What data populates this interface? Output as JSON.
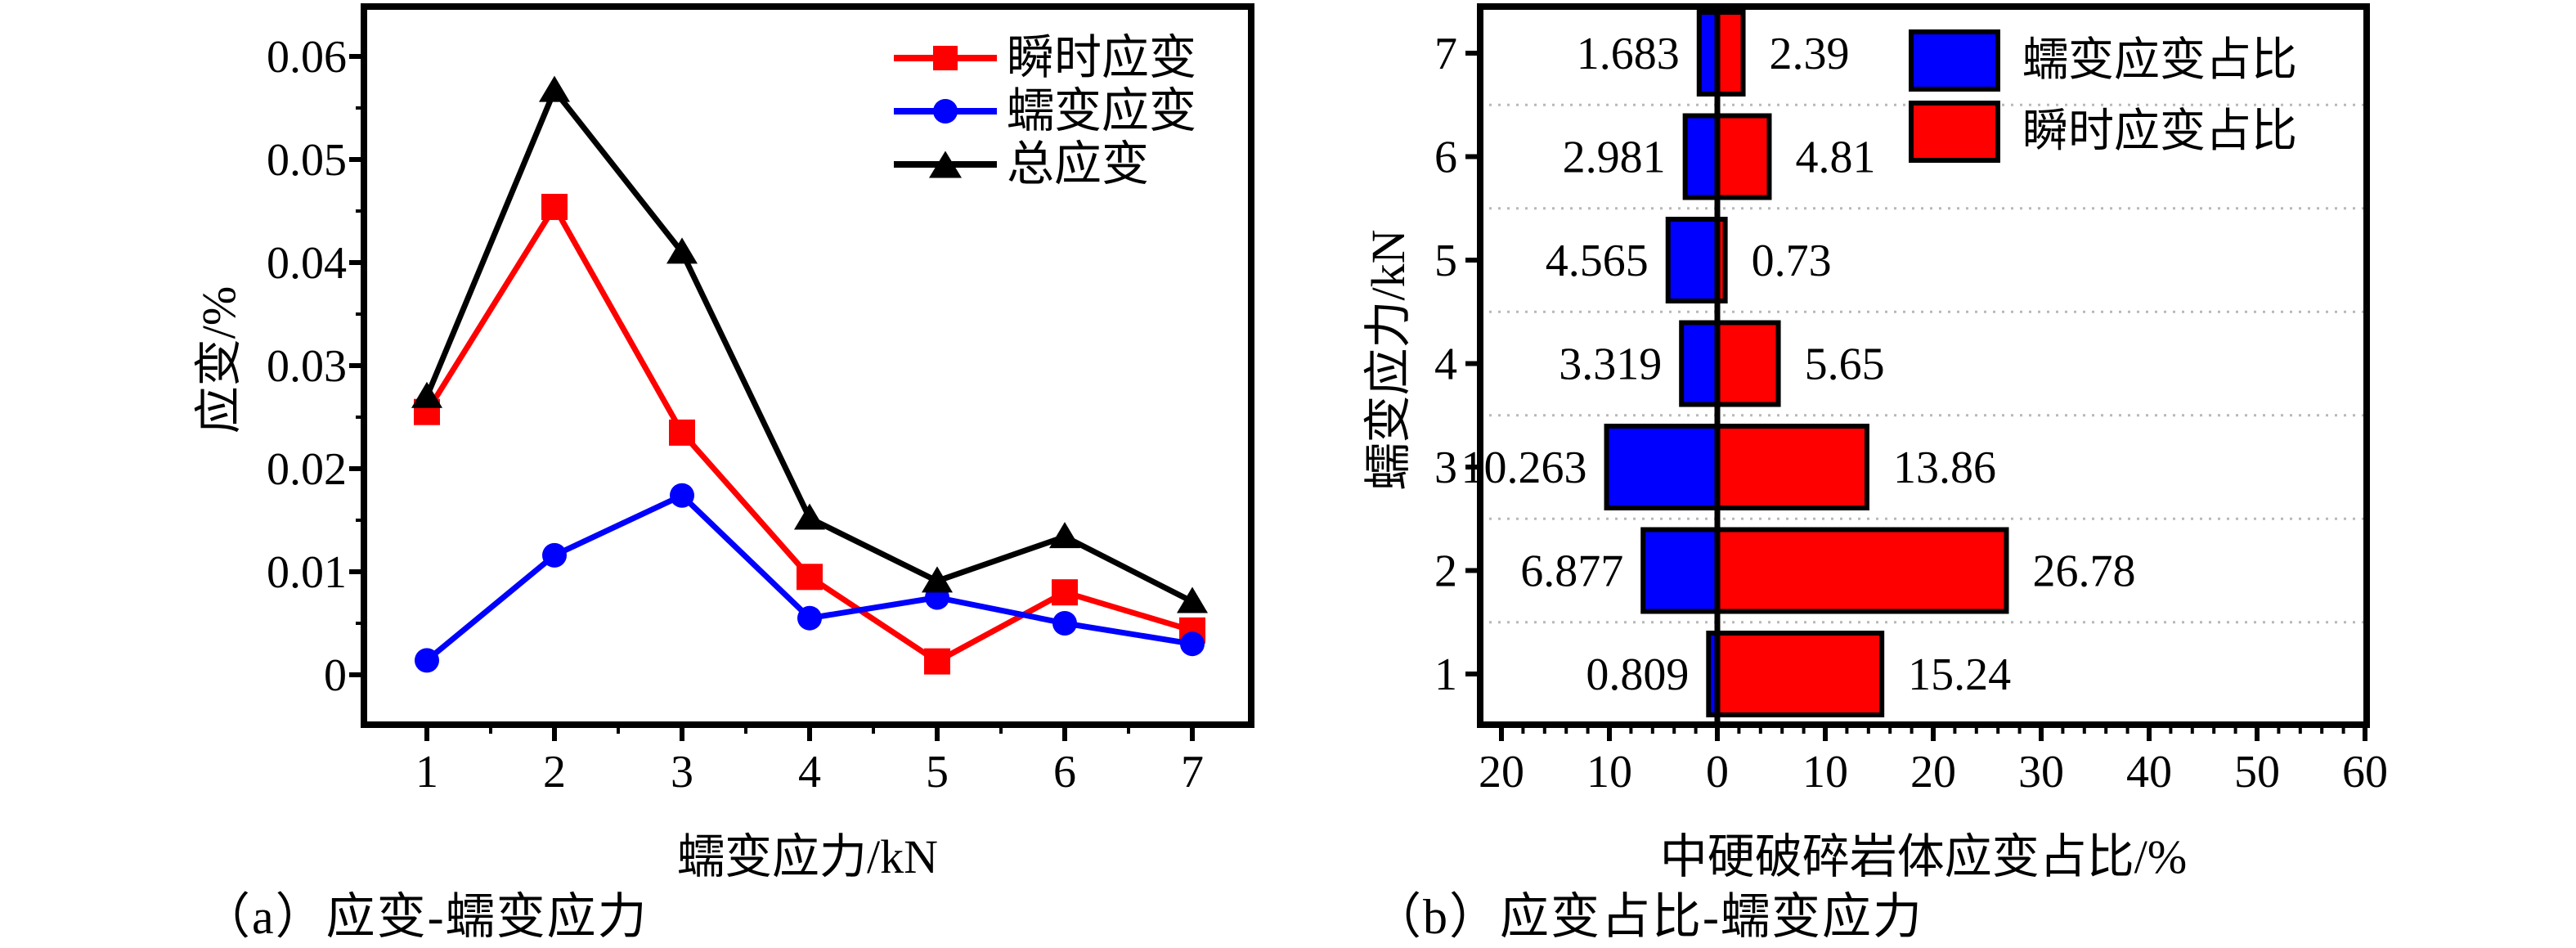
{
  "page": {
    "background": "#ffffff"
  },
  "colors": {
    "instantaneous": "#ff0000",
    "creep": "#0000ff",
    "total": "#000000",
    "axis": "#000000",
    "grid_dotted": "#b8b8b8"
  },
  "panel_a": {
    "caption": "（a）应变-蠕变应力",
    "x_axis_title": "蠕变应力/kN",
    "y_axis_title": "应变/%",
    "legend": [
      {
        "label": "瞬时应变",
        "marker": "square-marker",
        "color": "#ff0000"
      },
      {
        "label": "蠕变应变",
        "marker": "circle-marker",
        "color": "#0000ff"
      },
      {
        "label": "总应变",
        "marker": "triangle-marker",
        "color": "#000000"
      }
    ],
    "chart_data": {
      "type": "line",
      "x": [
        1,
        2,
        3,
        4,
        5,
        6,
        7
      ],
      "x_tick_labels": [
        "1",
        "2",
        "3",
        "4",
        "5",
        "6",
        "7"
      ],
      "y_ticks": [
        0,
        0.01,
        0.02,
        0.03,
        0.04,
        0.05,
        0.06
      ],
      "y_tick_labels": [
        "0",
        "0.01",
        "0.02",
        "0.03",
        "0.04",
        "0.05",
        "0.06"
      ],
      "xlim": [
        0.5,
        7.47
      ],
      "ylim": [
        -0.0049,
        0.0648
      ],
      "xlabel": "蠕变应力/kN",
      "ylabel": "应变/%",
      "grid": false,
      "legend_position": "upper right inside",
      "series": [
        {
          "name": "瞬时应变",
          "marker": "square",
          "color": "#ff0000",
          "values": [
            0.0255,
            0.0454,
            0.0235,
            0.0095,
            0.0013,
            0.008,
            0.0043
          ]
        },
        {
          "name": "蠕变应变",
          "marker": "circle",
          "color": "#0000ff",
          "values": [
            0.0014,
            0.0116,
            0.0174,
            0.0055,
            0.0075,
            0.005,
            0.003
          ]
        },
        {
          "name": "总应变",
          "marker": "triangle",
          "color": "#000000",
          "values": [
            0.027,
            0.0567,
            0.041,
            0.0152,
            0.0091,
            0.0134,
            0.0071
          ]
        }
      ]
    }
  },
  "panel_b": {
    "caption": "（b）应变占比-蠕变应力",
    "x_axis_title": "中硬破碎岩体应变占比/%",
    "y_axis_title": "蠕变应力/kN",
    "legend": [
      {
        "label": "蠕变应变占比",
        "color": "#0000ff"
      },
      {
        "label": "瞬时应变占比",
        "color": "#ff0000"
      }
    ],
    "chart_data": {
      "type": "bar",
      "orientation": "horizontal-diverging",
      "categories": [
        1,
        2,
        3,
        4,
        5,
        6,
        7
      ],
      "category_tick_labels": [
        "1",
        "2",
        "3",
        "4",
        "5",
        "6",
        "7"
      ],
      "x_ticks": [
        -20,
        -10,
        0,
        10,
        20,
        30,
        40,
        50,
        60
      ],
      "x_tick_labels": [
        "20",
        "10",
        "0",
        "10",
        "20",
        "30",
        "40",
        "50",
        "60"
      ],
      "xlim": [
        -22,
        60
      ],
      "xlabel": "中硬破碎岩体应变占比/%",
      "ylabel": "蠕变应力/kN",
      "grid": "dotted horizontal separators between categories",
      "legend_position": "upper right inside",
      "series": [
        {
          "name": "蠕变应变占比",
          "direction": "left",
          "color": "#0000ff",
          "values": [
            0.809,
            6.877,
            10.263,
            3.319,
            4.565,
            2.981,
            1.683
          ],
          "labels": [
            "0.809",
            "6.877",
            "10.263",
            "3.319",
            "4.565",
            "2.981",
            "1.683"
          ]
        },
        {
          "name": "瞬时应变占比",
          "direction": "right",
          "color": "#ff0000",
          "values": [
            15.24,
            26.78,
            13.86,
            5.65,
            0.73,
            4.81,
            2.39
          ],
          "labels": [
            "15.24",
            "26.78",
            "13.86",
            "5.65",
            "0.73",
            "4.81",
            "2.39"
          ]
        }
      ]
    }
  }
}
